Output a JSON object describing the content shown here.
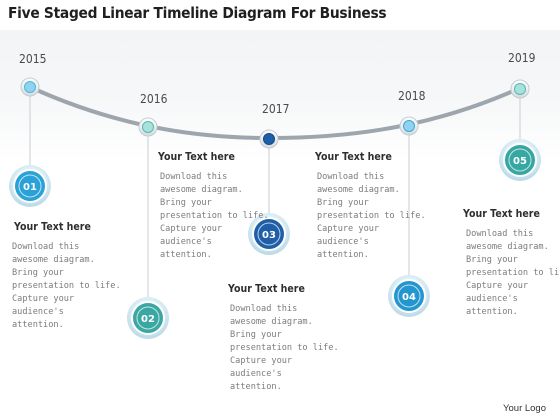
{
  "title": "Five Staged Linear Timeline Diagram For Business",
  "footer": "Your Logo",
  "stages": [
    {
      "year": "2015",
      "number": "01",
      "heading": "Your Text here",
      "lines": [
        "Download this",
        "awesome diagram.",
        "Bring your",
        "presentation to life.",
        "Capture your",
        "audience's",
        "attention."
      ],
      "color": "#2aa2d8"
    },
    {
      "year": "2016",
      "number": "02",
      "heading": "Your Text here",
      "lines": [
        "Download this",
        "awesome diagram.",
        "Bring your",
        "presentation to life.",
        "Capture your",
        "audience's",
        "attention."
      ],
      "color": "#3ba7a3"
    },
    {
      "year": "2017",
      "number": "03",
      "heading": "Your Text here",
      "lines": [
        "Download this",
        "awesome diagram.",
        "Bring your",
        "presentation to life.",
        "Capture your",
        "audience's",
        "attention."
      ],
      "color": "#1f5fa8"
    },
    {
      "year": "2018",
      "number": "04",
      "heading": "Your Text here",
      "lines": [
        "Download this",
        "awesome diagram.",
        "Bring your",
        "presentation to life.",
        "Capture your",
        "audience's",
        "attention."
      ],
      "color": "#2496cf"
    },
    {
      "year": "2019",
      "number": "05",
      "heading": "Your Text here",
      "lines": [
        "Download this",
        "awesome diagram.",
        "Bring your",
        "presentation to life.",
        "Capture your",
        "audience's",
        "attention."
      ],
      "color": "#36a7a1"
    }
  ]
}
